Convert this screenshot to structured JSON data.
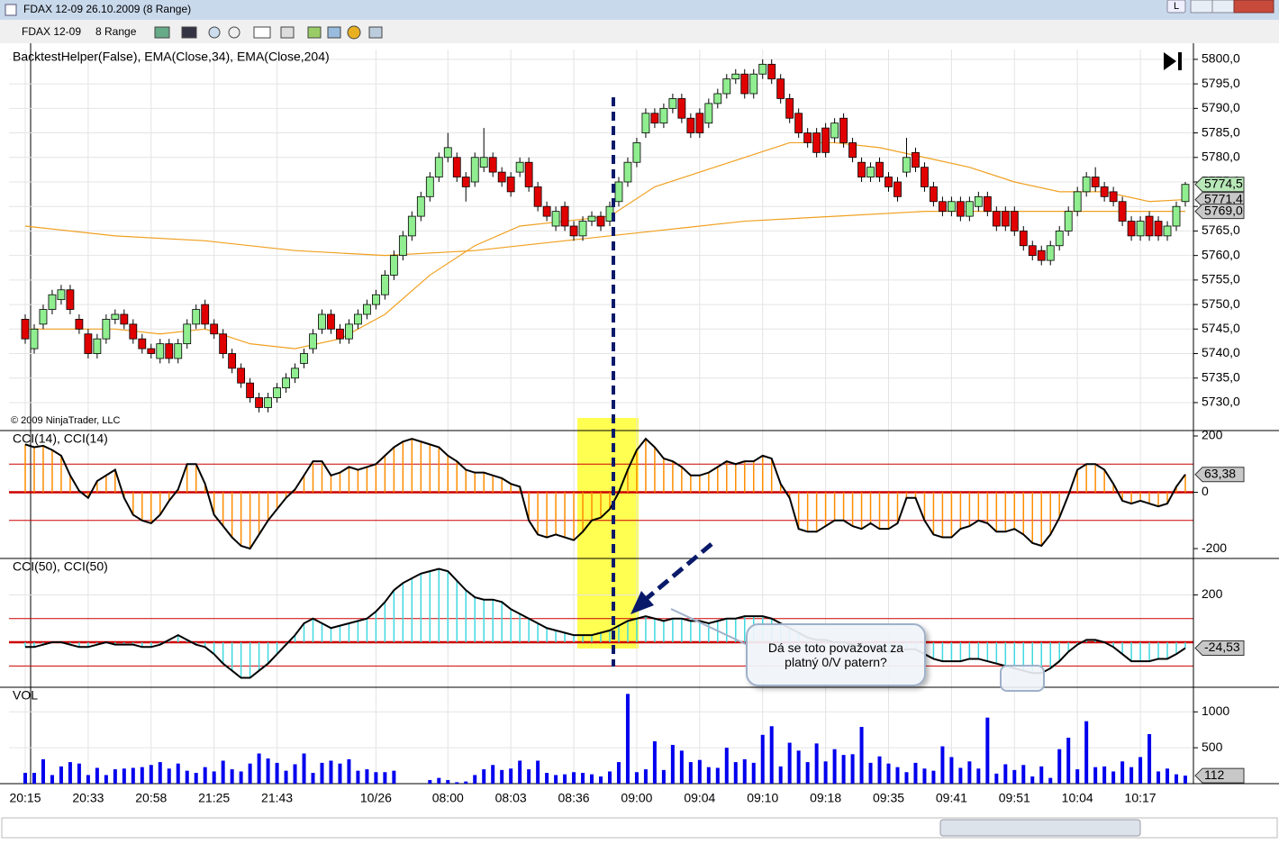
{
  "window": {
    "title": "FDAX 12-09  26.10.2009 (8 Range)",
    "button": "L"
  },
  "toolbar": {
    "instrument": "FDAX 12-09",
    "period": "8 Range"
  },
  "annotation": {
    "text": "Dá se toto považovat za platný 0/V patern?"
  },
  "chart_data": [
    {
      "type": "candlestick",
      "title": "BacktestHelper(False), EMA(Close,34), EMA(Close,204)",
      "watermark": "© 2009 NinjaTrader, LLC",
      "categories": [
        "20:15",
        null,
        null,
        null,
        null,
        null,
        null,
        "20:33",
        null,
        null,
        null,
        null,
        null,
        null,
        "20:58",
        null,
        null,
        null,
        null,
        null,
        null,
        "21:25",
        null,
        null,
        null,
        null,
        null,
        null,
        "21:43",
        null,
        null,
        null,
        null,
        null,
        null,
        null,
        null,
        null,
        null,
        "10/26",
        null,
        null,
        null,
        null,
        null,
        null,
        null,
        "08:00",
        null,
        null,
        null,
        null,
        null,
        null,
        "08:03",
        null,
        null,
        null,
        null,
        null,
        null,
        "08:36",
        null,
        null,
        null,
        null,
        null,
        null,
        "09:00",
        null,
        null,
        null,
        null,
        null,
        null,
        "09:04",
        null,
        null,
        null,
        null,
        null,
        null,
        "09:10",
        null,
        null,
        null,
        null,
        null,
        null,
        "09:18",
        null,
        null,
        null,
        null,
        null,
        null,
        "09:35",
        null,
        null,
        null,
        null,
        null,
        null,
        "09:41",
        null,
        null,
        null,
        null,
        null,
        null,
        "09:51",
        null,
        null,
        null,
        null,
        null,
        null,
        "10:04",
        null,
        null,
        null,
        null,
        null,
        null,
        "10:17",
        null,
        null,
        null,
        null,
        null
      ],
      "open": [
        5747,
        5741,
        5746,
        5749,
        5751,
        5753,
        5747,
        5744,
        5740,
        5743,
        5747,
        5748,
        5746,
        5743,
        5741,
        5739,
        5742,
        5739,
        5742,
        5746,
        5750,
        5746,
        5744,
        5740,
        5737,
        5734,
        5731,
        5729,
        5731,
        5733,
        5735,
        5738,
        5741,
        5745,
        5748,
        5745,
        5743,
        5746,
        5748,
        5750,
        5752,
        5756,
        5760,
        5764,
        5768,
        5772,
        5776,
        5780,
        5780,
        5776,
        5775,
        5778,
        5780,
        5777,
        5776,
        5777,
        5779,
        5774,
        5770,
        5766,
        5770,
        5766,
        5764,
        5767,
        5768,
        5767,
        5771,
        5775,
        5779,
        5785,
        5789,
        5787,
        5790,
        5792,
        5788,
        5789,
        5787,
        5791,
        5793,
        5796,
        5797,
        5793,
        5797,
        5799,
        5796,
        5792,
        5789,
        5785,
        5785,
        5786,
        5784,
        5788,
        5783,
        5779,
        5776,
        5779,
        5776,
        5775,
        5777,
        5781,
        5778,
        5774,
        5771,
        5769,
        5771,
        5768,
        5770,
        5772,
        5769,
        5769,
        5769,
        5765,
        5762,
        5761,
        5759,
        5762,
        5765,
        5769,
        5773,
        5776,
        5774,
        5773,
        5771,
        5767,
        5764,
        5768,
        5767,
        5764,
        5766,
        5771
      ],
      "high": [
        5748,
        5746,
        5750,
        5753,
        5754,
        5754,
        5748,
        5745,
        5744,
        5748,
        5749,
        5749,
        5747,
        5744,
        5742,
        5743,
        5743,
        5743,
        5747,
        5750,
        5751,
        5747,
        5745,
        5741,
        5738,
        5735,
        5732,
        5732,
        5734,
        5736,
        5738,
        5741,
        5745,
        5749,
        5749,
        5746,
        5747,
        5749,
        5751,
        5753,
        5757,
        5761,
        5765,
        5769,
        5773,
        5777,
        5781,
        5785,
        5781,
        5777,
        5781,
        5786,
        5781,
        5778,
        5777,
        5780,
        5780,
        5775,
        5771,
        5770,
        5771,
        5767,
        5768,
        5769,
        5769,
        5771,
        5776,
        5780,
        5784,
        5790,
        5790,
        5791,
        5793,
        5793,
        5789,
        5790,
        5792,
        5794,
        5797,
        5798,
        5798,
        5798,
        5800,
        5800,
        5797,
        5793,
        5790,
        5786,
        5786,
        5787,
        5788,
        5789,
        5784,
        5780,
        5779,
        5780,
        5777,
        5776,
        5784,
        5782,
        5779,
        5775,
        5772,
        5772,
        5772,
        5772,
        5773,
        5773,
        5770,
        5770,
        5770,
        5766,
        5763,
        5762,
        5763,
        5766,
        5770,
        5774,
        5777,
        5778,
        5775,
        5774,
        5772,
        5768,
        5768,
        5769,
        5768,
        5767,
        5771,
        5775
      ],
      "low": [
        5742,
        5740,
        5745,
        5748,
        5750,
        5748,
        5744,
        5739,
        5739,
        5742,
        5746,
        5745,
        5742,
        5740,
        5739,
        5738,
        5738,
        5738,
        5741,
        5745,
        5745,
        5743,
        5739,
        5736,
        5733,
        5730,
        5728,
        5728,
        5730,
        5732,
        5734,
        5737,
        5740,
        5744,
        5744,
        5742,
        5742,
        5745,
        5747,
        5749,
        5751,
        5755,
        5759,
        5763,
        5767,
        5771,
        5775,
        5779,
        5775,
        5771,
        5774,
        5777,
        5776,
        5774,
        5772,
        5776,
        5773,
        5769,
        5767,
        5765,
        5765,
        5763,
        5763,
        5766,
        5765,
        5766,
        5770,
        5774,
        5778,
        5784,
        5786,
        5786,
        5789,
        5787,
        5784,
        5784,
        5786,
        5790,
        5792,
        5795,
        5792,
        5792,
        5796,
        5795,
        5791,
        5787,
        5784,
        5782,
        5780,
        5780,
        5783,
        5782,
        5779,
        5775,
        5775,
        5775,
        5773,
        5771,
        5776,
        5777,
        5773,
        5770,
        5768,
        5768,
        5767,
        5767,
        5769,
        5768,
        5765,
        5765,
        5764,
        5761,
        5759,
        5758,
        5758,
        5761,
        5764,
        5768,
        5772,
        5773,
        5771,
        5770,
        5766,
        5763,
        5763,
        5763,
        5763,
        5763,
        5765,
        5770
      ],
      "close": [
        5743,
        5745,
        5749,
        5752,
        5753,
        5749,
        5745,
        5740,
        5743,
        5747,
        5748,
        5746,
        5743,
        5741,
        5740,
        5742,
        5739,
        5742,
        5746,
        5749,
        5746,
        5744,
        5740,
        5737,
        5734,
        5731,
        5729,
        5731,
        5733,
        5735,
        5737,
        5740,
        5744,
        5748,
        5745,
        5743,
        5746,
        5748,
        5750,
        5752,
        5756,
        5760,
        5764,
        5768,
        5772,
        5776,
        5780,
        5782,
        5776,
        5774,
        5780,
        5780,
        5777,
        5775,
        5773,
        5779,
        5774,
        5770,
        5768,
        5769,
        5766,
        5764,
        5767,
        5768,
        5766,
        5770,
        5775,
        5779,
        5783,
        5789,
        5787,
        5790,
        5792,
        5788,
        5785,
        5785,
        5791,
        5793,
        5796,
        5797,
        5793,
        5797,
        5799,
        5796,
        5792,
        5788,
        5785,
        5783,
        5781,
        5781,
        5787,
        5783,
        5780,
        5776,
        5778,
        5776,
        5774,
        5772,
        5780,
        5778,
        5774,
        5771,
        5769,
        5771,
        5768,
        5771,
        5772,
        5769,
        5766,
        5766,
        5765,
        5762,
        5760,
        5759,
        5762,
        5765,
        5769,
        5773,
        5776,
        5774,
        5772,
        5771,
        5767,
        5764,
        5767,
        5764,
        5764,
        5766,
        5770,
        5774.5
      ],
      "up_color": "#90ee90",
      "down_color": "#e00000",
      "lines": [
        {
          "color": "#f0a020",
          "x": [
            0,
            10,
            15,
            20,
            25,
            30,
            35,
            40,
            45,
            50,
            55,
            60,
            65,
            70,
            75,
            80,
            85,
            90,
            95,
            100,
            105,
            110,
            115,
            120,
            125,
            129
          ],
          "values": [
            5745,
            5745,
            5744,
            5745,
            5742,
            5741,
            5743,
            5748,
            5756,
            5762,
            5766,
            5767,
            5768,
            5774,
            5777,
            5780,
            5783,
            5783,
            5782,
            5780,
            5778,
            5775,
            5773,
            5773,
            5771,
            5771.4
          ]
        },
        {
          "color": "#f0a020",
          "x": [
            0,
            10,
            20,
            30,
            40,
            50,
            60,
            70,
            80,
            90,
            100,
            110,
            120,
            129
          ],
          "values": [
            5766,
            5764,
            5763,
            5761,
            5760,
            5761,
            5763,
            5765,
            5767,
            5768,
            5769,
            5769,
            5769,
            5769.0
          ]
        }
      ],
      "ylim": [
        5724.3,
        5802
      ],
      "yticks": [
        {
          "value": 5730,
          "label": "5730,0"
        },
        {
          "value": 5735,
          "label": "5735,0"
        },
        {
          "value": 5740,
          "label": "5740,0"
        },
        {
          "value": 5745,
          "label": "5745,0"
        },
        {
          "value": 5750,
          "label": "5750,0"
        },
        {
          "value": 5755,
          "label": "5755,0"
        },
        {
          "value": 5760,
          "label": "5760,0"
        },
        {
          "value": 5765,
          "label": "5765,0"
        },
        {
          "value": 5770,
          "label": "5770,0"
        },
        {
          "value": 5775,
          "label": "5775,0"
        },
        {
          "value": 5780,
          "label": "5780,0"
        },
        {
          "value": 5785,
          "label": "5785,0"
        },
        {
          "value": 5790,
          "label": "5790,0"
        },
        {
          "value": 5795,
          "label": "5795,0"
        },
        {
          "value": 5800,
          "label": "5800,0"
        }
      ],
      "grid": true,
      "markers": [
        {
          "value": 5774.5,
          "label": "5774,5",
          "color": "#b8e8b8"
        },
        {
          "value": 5771.4,
          "label": "5771,4",
          "color": "#c8c8c8"
        },
        {
          "value": 5769.0,
          "label": "5769,0",
          "color": "#c8c8c8"
        }
      ]
    },
    {
      "type": "cci",
      "title": "CCI(14), CCI(14)",
      "values": [
        170,
        160,
        165,
        150,
        130,
        60,
        5,
        -20,
        40,
        60,
        80,
        -20,
        -80,
        -100,
        -110,
        -80,
        -30,
        10,
        100,
        100,
        30,
        -80,
        -120,
        -160,
        -190,
        -200,
        -150,
        -100,
        -60,
        -20,
        10,
        60,
        110,
        110,
        60,
        70,
        90,
        80,
        90,
        100,
        130,
        160,
        180,
        190,
        180,
        170,
        160,
        130,
        110,
        80,
        70,
        70,
        60,
        50,
        30,
        20,
        -100,
        -150,
        -160,
        -150,
        -160,
        -170,
        -140,
        -100,
        -90,
        -60,
        0,
        80,
        150,
        190,
        160,
        120,
        110,
        90,
        60,
        60,
        70,
        90,
        110,
        100,
        110,
        110,
        130,
        120,
        30,
        -20,
        -130,
        -140,
        -140,
        -120,
        -100,
        -100,
        -120,
        -130,
        -110,
        -130,
        -130,
        -110,
        -20,
        -20,
        -100,
        -150,
        -160,
        -160,
        -130,
        -120,
        -100,
        -110,
        -140,
        -140,
        -130,
        -150,
        -180,
        -190,
        -150,
        -90,
        -10,
        80,
        100,
        100,
        80,
        30,
        -30,
        -40,
        -30,
        -40,
        -50,
        -40,
        20,
        63.38
      ],
      "line_color": "#000000",
      "hist_color": "#ff8c00",
      "level_color": "#cc0000",
      "levels": [
        -100,
        0,
        100
      ],
      "ylim": [
        -235,
        216
      ],
      "yticks": [
        -200,
        0,
        200
      ],
      "grid": false,
      "markers": [
        {
          "value": 63.38,
          "label": "63,38",
          "color": "#c8c8c8"
        }
      ]
    },
    {
      "type": "cci",
      "title": "CCI(50), CCI(50)",
      "values": [
        -20,
        -20,
        -10,
        0,
        0,
        -10,
        -20,
        -20,
        -10,
        0,
        -10,
        -10,
        -10,
        -20,
        -20,
        -10,
        10,
        30,
        10,
        -10,
        -20,
        -50,
        -90,
        -120,
        -150,
        -150,
        -120,
        -90,
        -50,
        -10,
        30,
        80,
        100,
        80,
        60,
        70,
        80,
        90,
        100,
        130,
        170,
        220,
        250,
        270,
        290,
        300,
        310,
        300,
        260,
        220,
        190,
        180,
        180,
        170,
        140,
        120,
        100,
        80,
        60,
        50,
        40,
        30,
        30,
        30,
        40,
        50,
        70,
        90,
        100,
        110,
        100,
        90,
        100,
        100,
        90,
        90,
        80,
        90,
        100,
        100,
        110,
        110,
        110,
        100,
        80,
        60,
        40,
        20,
        10,
        10,
        0,
        0,
        -10,
        -20,
        -20,
        -30,
        -40,
        -40,
        -30,
        -30,
        -50,
        -70,
        -80,
        -80,
        -80,
        -70,
        -70,
        -80,
        -90,
        -100,
        -110,
        -120,
        -130,
        -130,
        -110,
        -80,
        -40,
        -10,
        10,
        10,
        0,
        -20,
        -50,
        -80,
        -80,
        -80,
        -70,
        -70,
        -50,
        -24.53
      ],
      "line_color": "#000000",
      "hist_color": "#40d8e0",
      "level_color": "#cc0000",
      "levels": [
        -100,
        0,
        100
      ],
      "ylim": [
        -190,
        350
      ],
      "yticks": [
        200
      ],
      "grid": true,
      "markers": [
        {
          "value": -24.53,
          "label": "-24,53",
          "color": "#c8c8c8"
        }
      ]
    },
    {
      "type": "bar",
      "title": "VOL",
      "color": "#0000ee",
      "values": [
        150,
        150,
        340,
        120,
        240,
        300,
        280,
        120,
        220,
        120,
        200,
        210,
        220,
        230,
        260,
        300,
        210,
        280,
        180,
        150,
        230,
        170,
        320,
        200,
        170,
        280,
        420,
        350,
        290,
        180,
        270,
        420,
        150,
        290,
        320,
        280,
        340,
        180,
        200,
        160,
        160,
        180,
        null,
        null,
        null,
        50,
        80,
        50,
        20,
        30,
        120,
        200,
        260,
        190,
        210,
        320,
        200,
        320,
        150,
        120,
        130,
        160,
        150,
        130,
        100,
        170,
        300,
        1250,
        160,
        200,
        590,
        190,
        540,
        460,
        300,
        330,
        230,
        220,
        500,
        300,
        340,
        290,
        680,
        800,
        240,
        570,
        460,
        300,
        560,
        310,
        480,
        400,
        410,
        790,
        290,
        380,
        280,
        230,
        160,
        290,
        210,
        180,
        520,
        370,
        220,
        310,
        210,
        920,
        140,
        270,
        190,
        260,
        100,
        240,
        80,
        480,
        640,
        200,
        870,
        230,
        240,
        170,
        310,
        230,
        370,
        690,
        170,
        210,
        130,
        112
      ],
      "ylim": [
        0,
        1330
      ],
      "yticks": [
        500,
        1000
      ],
      "grid": true,
      "markers": [
        {
          "value": 112,
          "label": "112",
          "color": "#c8c8c8"
        }
      ]
    }
  ]
}
